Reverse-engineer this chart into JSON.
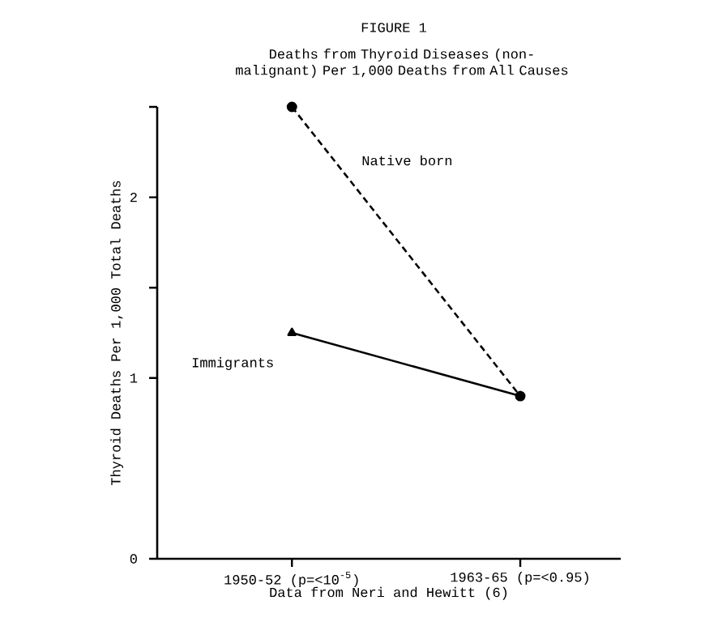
{
  "chart_data": {
    "type": "line",
    "title": "FIGURE 1",
    "subtitle": "Deaths from Thyroid Diseases (non-malignant) Per 1,000 Deaths from All Causes",
    "xlabel": "Data from Neri and Hewitt (6)",
    "ylabel": "Thyroid Deaths Per 1,000 Total Deaths",
    "categories": [
      "1950-52 (p=<10$^{-5}$)",
      "1963-65 (p=<0.95)"
    ],
    "series": [
      {
        "name": "Native born",
        "color": "#000000",
        "values": [
          2.5,
          0.9
        ],
        "marker": "circle",
        "line_style": "dashed"
      },
      {
        "name": "Immigrants",
        "color": "#000000",
        "values": [
          1.25,
          0.9
        ],
        "marker": "triangle",
        "line_style": "solid"
      }
    ],
    "ylim": [
      0,
      2.5
    ],
    "yticks": [
      0,
      1,
      {
        "value": 1.5,
        "label": null
      },
      2,
      {
        "value": 2.5,
        "label": null
      }
    ]
  }
}
